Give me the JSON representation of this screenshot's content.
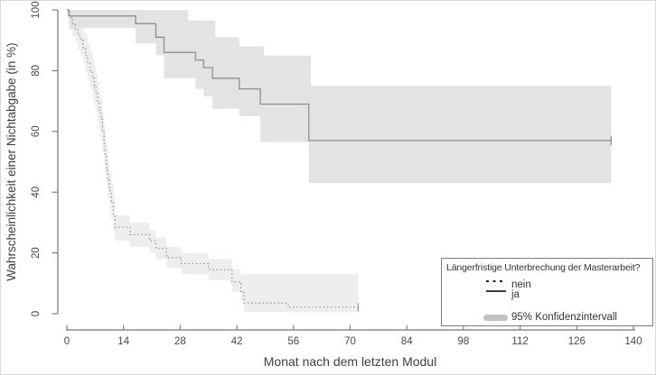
{
  "chart_data": {
    "type": "line",
    "subtype": "kaplan-meier-step-with-confidence-bands",
    "title": "",
    "xlabel": "Monat nach dem letzten Modul",
    "ylabel": "Wahrscheinlichkeit einer Nichtabgabe (in %)",
    "xlim": [
      0,
      140
    ],
    "ylim": [
      0,
      100
    ],
    "x_ticks": [
      0,
      14,
      28,
      42,
      56,
      70,
      84,
      98,
      112,
      126,
      140
    ],
    "y_ticks": [
      0,
      20,
      40,
      60,
      80,
      100
    ],
    "grid": false,
    "colors": {
      "axis": "#757575",
      "tick_text": "#4a4a4a",
      "axis_title_text": "#3f3f3f",
      "legend_border": "#7d7d7d",
      "legend_text": "#333333",
      "legend_ci_sample": "#c2c2c2",
      "legend_line_sample": "#1c1c1c"
    },
    "legend": {
      "title": "Längerfristige Unterbrechung der Masterarbeit?",
      "position": "bottom-right",
      "entries": [
        {
          "label": "nein",
          "style": "dotted"
        },
        {
          "label": "ja",
          "style": "solid"
        },
        {
          "label": "95% Konfidenzintervall",
          "style": "band"
        }
      ]
    },
    "series": [
      {
        "name": "nein",
        "style": "dotted",
        "color": "#9c9c9c",
        "band_color": "#eeeeee",
        "end_x": 72,
        "end_tick": true,
        "steps": [
          [
            0,
            100
          ],
          [
            0.7,
            97.5
          ],
          [
            1.4,
            95.5
          ],
          [
            2.1,
            93.5
          ],
          [
            2.8,
            91.5
          ],
          [
            3.4,
            90
          ],
          [
            4,
            87.5
          ],
          [
            4.6,
            85
          ],
          [
            5.1,
            82.5
          ],
          [
            5.7,
            80
          ],
          [
            6.3,
            77.5
          ],
          [
            6.8,
            75
          ],
          [
            7.2,
            72.5
          ],
          [
            7.6,
            70
          ],
          [
            8,
            67
          ],
          [
            8.4,
            64
          ],
          [
            8.8,
            60
          ],
          [
            9.2,
            56
          ],
          [
            9.5,
            52
          ],
          [
            9.8,
            48
          ],
          [
            10.1,
            44
          ],
          [
            10.5,
            40.5
          ],
          [
            11,
            36.5
          ],
          [
            11.5,
            32.5
          ],
          [
            11.9,
            28.5
          ],
          [
            15.6,
            26
          ],
          [
            20.4,
            24
          ],
          [
            22,
            21.5
          ],
          [
            24.6,
            18.5
          ],
          [
            28.3,
            16.5
          ],
          [
            35,
            14.5
          ],
          [
            40.8,
            10.5
          ],
          [
            43,
            7
          ],
          [
            43.8,
            3.5
          ],
          [
            54.7,
            2.2
          ]
        ],
        "ci_upper": [
          [
            0,
            100
          ],
          [
            1.4,
            99
          ],
          [
            2.1,
            98
          ],
          [
            2.8,
            96.5
          ],
          [
            3.4,
            95
          ],
          [
            4,
            93
          ],
          [
            4.6,
            91
          ],
          [
            5.1,
            89
          ],
          [
            5.7,
            86.5
          ],
          [
            6.3,
            84
          ],
          [
            6.8,
            81.5
          ],
          [
            7.2,
            79
          ],
          [
            7.6,
            76.5
          ],
          [
            8,
            73.5
          ],
          [
            8.4,
            70.5
          ],
          [
            8.8,
            66.5
          ],
          [
            9.2,
            62.5
          ],
          [
            9.5,
            58.5
          ],
          [
            9.8,
            54.5
          ],
          [
            10.1,
            50.5
          ],
          [
            10.5,
            47
          ],
          [
            11,
            43
          ],
          [
            11.5,
            38.5
          ],
          [
            11.9,
            32.5
          ],
          [
            15.6,
            30
          ],
          [
            20.4,
            27.5
          ],
          [
            22,
            25
          ],
          [
            24.6,
            22
          ],
          [
            28.3,
            20
          ],
          [
            35,
            18
          ],
          [
            40.8,
            14.5
          ],
          [
            43,
            13
          ],
          [
            50,
            13
          ]
        ],
        "ci_lower": [
          [
            0,
            98
          ],
          [
            0.7,
            93.5
          ],
          [
            1.4,
            91.5
          ],
          [
            2.1,
            89.5
          ],
          [
            2.8,
            87
          ],
          [
            3.4,
            85
          ],
          [
            4,
            82.5
          ],
          [
            4.6,
            79.5
          ],
          [
            5.1,
            77
          ],
          [
            5.7,
            74
          ],
          [
            6.3,
            71
          ],
          [
            6.8,
            68.5
          ],
          [
            7.2,
            66
          ],
          [
            7.6,
            63
          ],
          [
            8,
            60
          ],
          [
            8.4,
            57
          ],
          [
            8.8,
            53
          ],
          [
            9.2,
            49
          ],
          [
            9.5,
            45.5
          ],
          [
            9.8,
            41.5
          ],
          [
            10.1,
            38
          ],
          [
            10.5,
            34.5
          ],
          [
            11,
            31
          ],
          [
            11.5,
            27
          ],
          [
            11.9,
            24
          ],
          [
            15.6,
            22
          ],
          [
            20.4,
            20
          ],
          [
            22,
            18
          ],
          [
            24.6,
            15
          ],
          [
            28.3,
            13
          ],
          [
            35,
            11
          ],
          [
            40.8,
            7
          ],
          [
            43,
            4
          ],
          [
            43.8,
            0.6
          ],
          [
            54.7,
            0.5
          ]
        ]
      },
      {
        "name": "ja",
        "style": "solid",
        "color": "#8f8f8f",
        "band_color": "#e3e3e3",
        "end_x": 134.5,
        "end_tick": true,
        "steps": [
          [
            0,
            100
          ],
          [
            0.5,
            98
          ],
          [
            17,
            95.5
          ],
          [
            22,
            91
          ],
          [
            24,
            86
          ],
          [
            31.8,
            83.5
          ],
          [
            33.8,
            81
          ],
          [
            36,
            77.5
          ],
          [
            42.6,
            74
          ],
          [
            47.8,
            69
          ],
          [
            59.8,
            57
          ]
        ],
        "ci_upper": [
          [
            0,
            100
          ],
          [
            30,
            96.5
          ],
          [
            36.7,
            91
          ],
          [
            42.6,
            88
          ],
          [
            48.7,
            85
          ],
          [
            60.3,
            75
          ]
        ],
        "ci_lower": [
          [
            0,
            100
          ],
          [
            0.5,
            94
          ],
          [
            17,
            89
          ],
          [
            22,
            85
          ],
          [
            24,
            77.5
          ],
          [
            31.8,
            74
          ],
          [
            33.8,
            71.5
          ],
          [
            36,
            67.5
          ],
          [
            42.6,
            65
          ],
          [
            47.8,
            56.5
          ],
          [
            59.8,
            43
          ]
        ]
      }
    ]
  }
}
